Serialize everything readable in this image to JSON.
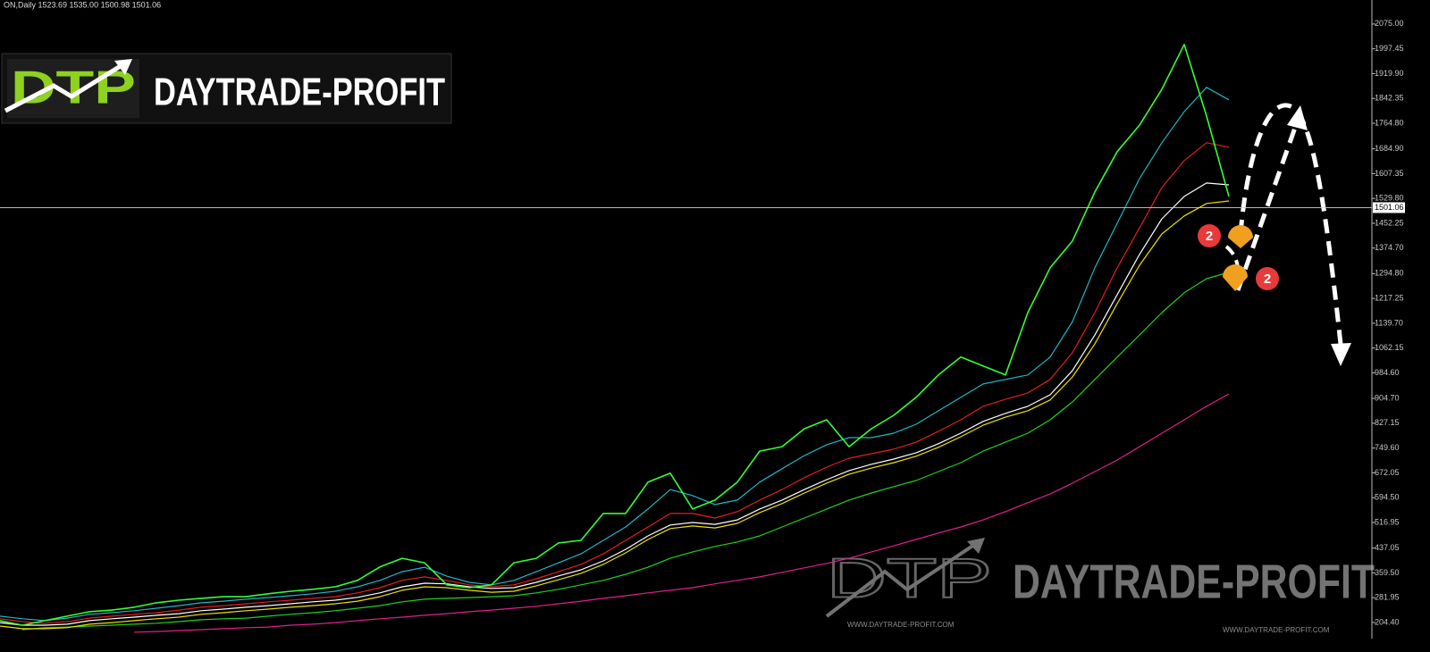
{
  "chart_data": {
    "type": "line",
    "header": "ON,Daily  1523.69 1535.00 1500.98 1501.06",
    "ylim": [
      154,
      2150
    ],
    "yticks": [
      {
        "value": 2075,
        "label": "2075.00"
      },
      1997.45,
      {
        "value": 1919.9,
        "label": "1919.90"
      },
      1842.35,
      {
        "value": 1764.8,
        "label": "1764.80"
      },
      {
        "value": 1684.9,
        "label": "1684.90"
      },
      1607.35,
      {
        "value": 1529.8,
        "label": "1529.80"
      },
      1452.25,
      {
        "value": 1374.7,
        "label": "1374.70"
      },
      {
        "value": 1294.8,
        "label": "1294.80"
      },
      1217.25,
      {
        "value": 1139.7,
        "label": "1139.70"
      },
      1062.15,
      {
        "value": 984.6,
        "label": "984.60"
      },
      {
        "value": 904.7,
        "label": "904.70"
      },
      827.15,
      {
        "value": 749.6,
        "label": "749.60"
      },
      672.05,
      {
        "value": 594.5,
        "label": "594.50"
      },
      516.95,
      437.05,
      {
        "value": 359.5,
        "label": "359.50"
      },
      281.95,
      {
        "value": 204.4,
        "label": "204.40"
      }
    ],
    "grid": false,
    "current_price": 1501.06,
    "series": [
      {
        "color": "#e0208a",
        "width": 1.2,
        "values": [
          null,
          null,
          null,
          null,
          null,
          null,
          174,
          176,
          179,
          182,
          185,
          188,
          190,
          196,
          199,
          204,
          210,
          216,
          221,
          227,
          232,
          238,
          243,
          249,
          255,
          263,
          271,
          280,
          288,
          297,
          305,
          313,
          325,
          336,
          347,
          361,
          375,
          389,
          405,
          425,
          444,
          464,
          484,
          503,
          525,
          551,
          579,
          606,
          640,
          676,
          712,
          754,
          796,
          838,
          880,
          919
        ]
      },
      {
        "color": "#1fd21f",
        "width": 1.2,
        "values": [
          null,
          182,
          188,
          190,
          193,
          196,
          199,
          202,
          207,
          213,
          216,
          218,
          224,
          230,
          235,
          241,
          249,
          257,
          269,
          277,
          280,
          282,
          285,
          288,
          297,
          308,
          322,
          336,
          355,
          377,
          405,
          425,
          442,
          456,
          475,
          503,
          531,
          559,
          587,
          609,
          629,
          648,
          676,
          704,
          740,
          768,
          796,
          838,
          894,
          964,
          1034,
          1103,
          1173,
          1235,
          1279,
          1299
        ]
      },
      {
        "color": "#f0e000",
        "width": 1.2,
        "values": [
          193,
          185,
          185,
          188,
          199,
          204,
          210,
          216,
          221,
          230,
          235,
          241,
          246,
          252,
          257,
          263,
          271,
          285,
          305,
          316,
          313,
          305,
          299,
          302,
          319,
          338,
          358,
          386,
          422,
          464,
          498,
          506,
          500,
          514,
          548,
          576,
          609,
          640,
          668,
          687,
          704,
          724,
          752,
          785,
          821,
          846,
          866,
          900,
          972,
          1075,
          1201,
          1321,
          1419,
          1475,
          1514,
          1522
        ]
      },
      {
        "color": "#ffffff",
        "width": 1.2,
        "values": [
          204,
          196,
          196,
          199,
          210,
          216,
          221,
          227,
          232,
          241,
          246,
          252,
          257,
          263,
          269,
          274,
          283,
          297,
          316,
          327,
          325,
          316,
          311,
          313,
          330,
          350,
          369,
          397,
          433,
          475,
          509,
          517,
          511,
          525,
          559,
          587,
          620,
          651,
          679,
          699,
          715,
          735,
          763,
          796,
          833,
          858,
          880,
          916,
          992,
          1103,
          1229,
          1355,
          1466,
          1536,
          1578,
          1572
        ]
      },
      {
        "color": "#e0201e",
        "width": 1.2,
        "values": [
          216,
          207,
          202,
          207,
          218,
          224,
          230,
          235,
          243,
          252,
          257,
          263,
          269,
          274,
          280,
          285,
          297,
          313,
          336,
          347,
          336,
          322,
          316,
          322,
          341,
          363,
          386,
          419,
          461,
          503,
          545,
          545,
          531,
          551,
          587,
          620,
          657,
          690,
          718,
          732,
          746,
          768,
          802,
          838,
          880,
          902,
          922,
          964,
          1048,
          1173,
          1313,
          1438,
          1564,
          1648,
          1704,
          1690
        ]
      },
      {
        "color": "#1fb5c8",
        "width": 1.2,
        "values": [
          224,
          216,
          210,
          218,
          230,
          235,
          241,
          249,
          257,
          266,
          271,
          277,
          282,
          288,
          294,
          302,
          316,
          336,
          363,
          377,
          349,
          330,
          322,
          336,
          363,
          391,
          419,
          461,
          503,
          559,
          620,
          601,
          573,
          587,
          643,
          685,
          726,
          760,
          782,
          782,
          796,
          824,
          866,
          908,
          950,
          964,
          978,
          1034,
          1145,
          1313,
          1452,
          1592,
          1704,
          1801,
          1877,
          1838
        ]
      },
      {
        "color": "#33ff33",
        "width": 1.6,
        "values": [
          210,
          196,
          210,
          224,
          238,
          243,
          252,
          266,
          274,
          280,
          285,
          285,
          294,
          302,
          308,
          316,
          336,
          378,
          405,
          391,
          322,
          313,
          322,
          391,
          405,
          453,
          461,
          545,
          545,
          643,
          671,
          559,
          587,
          643,
          740,
          754,
          810,
          838,
          754,
          810,
          852,
          908,
          978,
          1034,
          1006,
          978,
          1173,
          1313,
          1397,
          1550,
          1676,
          1759,
          1871,
          2011,
          1787,
          1536
        ]
      }
    ],
    "annotations": [
      "2",
      "2"
    ],
    "logo": {
      "mark": "DTP",
      "text": "DAYTRADE-PROFIT"
    },
    "watermark": {
      "mark": "DTP",
      "text": "DAYTRADE-PROFIT",
      "urls": [
        "WWW.DAYTRADE-PROFIT.COM",
        "WWW.DAYTRADE-PROFIT.COM"
      ]
    }
  }
}
